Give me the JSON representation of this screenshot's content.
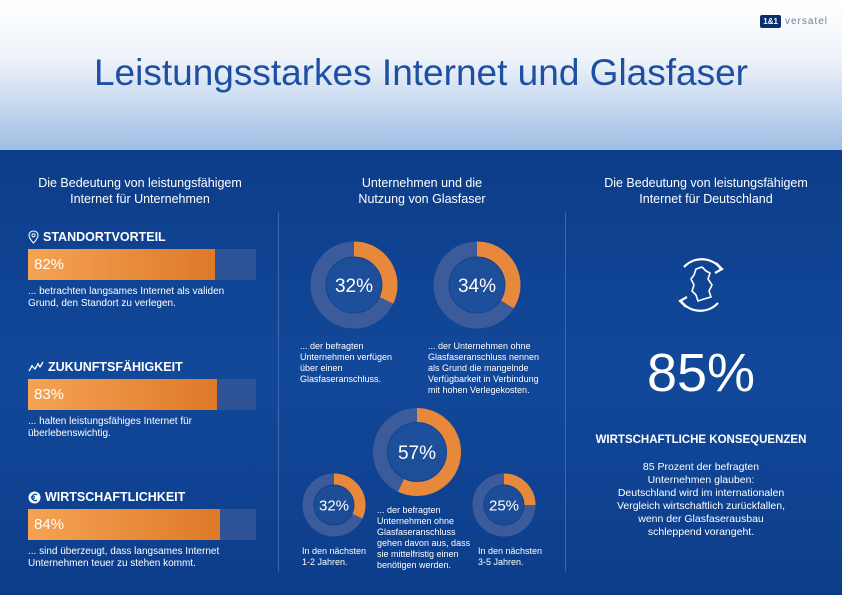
{
  "logo": {
    "mark": "1&1",
    "text": "versatel"
  },
  "title": "Leistungsstarkes Internet und Glasfaser",
  "left": {
    "heading_1": "Die Bedeutung von leistungsfähigem",
    "heading_2": "Internet für Unternehmen",
    "items": [
      {
        "label": "STANDORTVORTEIL",
        "percent": 82,
        "value": "82%",
        "desc_1": "... betrachten langsames Internet als validen",
        "desc_2": "Grund, den Standort zu verlegen.",
        "icon": "location-pin-icon"
      },
      {
        "label": "ZUKUNFTSFÄHIGKEIT",
        "percent": 83,
        "value": "83%",
        "desc_1": "... halten leistungsfähiges Internet für",
        "desc_2": "überlebenswichtig.",
        "icon": "trend-graph-icon"
      },
      {
        "label": "WIRTSCHAFTLICHKEIT",
        "percent": 84,
        "value": "84%",
        "desc_1": "... sind überzeugt, dass langsames Internet",
        "desc_2": "Unternehmen teuer zu stehen kommt.",
        "icon": "euro-icon"
      }
    ]
  },
  "middle": {
    "heading_1": "Unternehmen und die",
    "heading_2": "Nutzung von Glasfaser",
    "donut_a": {
      "value": "32%",
      "percent": 32,
      "lines": [
        "... der befragten",
        "Unternehmen verfügen",
        "über einen",
        "Glasfaseranschluss."
      ]
    },
    "donut_b": {
      "value": "34%",
      "percent": 34,
      "lines": [
        "... der Unternehmen ohne",
        "Glasfaseranschluss nennen",
        "als Grund die mangelnde",
        "Verfügbarkeit in Verbindung",
        "mit hohen Verlegekosten."
      ]
    },
    "donut_c": {
      "value": "57%",
      "percent": 57,
      "lines": [
        "... der befragten",
        "Unternehmen ohne",
        "Glasfaseranschluss",
        "gehen davon aus, dass",
        "sie mittelfristig einen",
        "benötigen werden."
      ]
    },
    "donut_d": {
      "value": "32%",
      "percent": 32,
      "lines": [
        "In den nächsten",
        "1-2 Jahren."
      ]
    },
    "donut_e": {
      "value": "25%",
      "percent": 25,
      "lines": [
        "In den nächsten",
        "3-5 Jahren."
      ]
    }
  },
  "right": {
    "heading_1": "Die Bedeutung von leistungsfähigem",
    "heading_2": "Internet für Deutschland",
    "icon": "germany-map-cycle-icon",
    "big_value": "85%",
    "subheading": "WIRTSCHAFTLICHE KONSEQUENZEN",
    "text_lines": [
      "85 Prozent der befragten",
      "Unternehmen glauben:",
      "Deutschland wird im internationalen",
      "Vergleich wirtschaftlich zurückfallen,",
      "wenn der Glasfaserausbau",
      "schleppend vorangeht."
    ]
  },
  "colors": {
    "accent": "#e8883a",
    "ring_track": "#3c5b9b",
    "panel": "#0f4494"
  }
}
